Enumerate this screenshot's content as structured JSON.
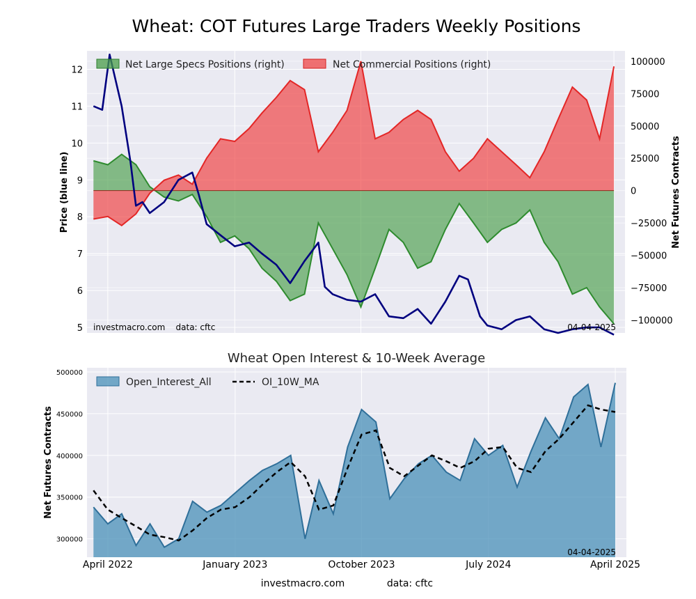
{
  "figure_title": "Wheat: COT Futures Large Traders Weekly Positions",
  "footer": {
    "site": "investmacro.com",
    "source": "data: cftc"
  },
  "colors": {
    "price": "#00007f",
    "specs": "#4a9e4a",
    "commercial": "#ef3b3b",
    "oi": "#4a90b8",
    "ma": "#000000",
    "panel": "#eaeaf2"
  },
  "chart_data": [
    {
      "id": "top",
      "type": "area",
      "title": "",
      "left_ylabel": "Price (blue line)",
      "right_ylabel": "Net Futures Contracts",
      "left_ylim": [
        4.85,
        12.5
      ],
      "right_ylim": [
        -110000,
        108000
      ],
      "left_ticks": [
        "5",
        "6",
        "7",
        "8",
        "9",
        "10",
        "11",
        "12"
      ],
      "right_ticks": [
        "-100000",
        "-75000",
        "-50000",
        "-25000",
        "0",
        "25000",
        "50000",
        "75000",
        "100000"
      ],
      "x_range": [
        "2022-02-15",
        "2025-04-25"
      ],
      "legend": [
        "Net Large Specs Positions (right)",
        "Net Commercial Positions (right)"
      ],
      "legend_position": "top",
      "annotation_left": "investmacro.com    data: cftc",
      "annotation_right": "04-04-2025",
      "grid": true,
      "series": [
        {
          "name": "Net Large Specs Positions (right)",
          "kind": "area",
          "x": [
            "2022-03-01",
            "2022-04-01",
            "2022-05-01",
            "2022-06-01",
            "2022-07-01",
            "2022-08-01",
            "2022-09-01",
            "2022-10-01",
            "2022-11-01",
            "2022-12-01",
            "2023-01-01",
            "2023-02-01",
            "2023-03-01",
            "2023-04-01",
            "2023-05-01",
            "2023-06-01",
            "2023-07-01",
            "2023-08-01",
            "2023-09-01",
            "2023-10-01",
            "2023-11-01",
            "2023-12-01",
            "2024-01-01",
            "2024-02-01",
            "2024-03-01",
            "2024-04-01",
            "2024-05-01",
            "2024-06-01",
            "2024-07-01",
            "2024-08-01",
            "2024-09-01",
            "2024-10-01",
            "2024-11-01",
            "2024-12-01",
            "2025-01-01",
            "2025-02-01",
            "2025-03-01",
            "2025-04-01"
          ],
          "y": [
            23000,
            20000,
            28000,
            20000,
            3000,
            -5000,
            -8000,
            -3000,
            -20000,
            -40000,
            -35000,
            -45000,
            -60000,
            -70000,
            -85000,
            -80000,
            -25000,
            -45000,
            -65000,
            -90000,
            -60000,
            -30000,
            -40000,
            -60000,
            -55000,
            -30000,
            -10000,
            -25000,
            -40000,
            -30000,
            -25000,
            -15000,
            -40000,
            -55000,
            -80000,
            -75000,
            -90000,
            -103000
          ]
        },
        {
          "name": "Net Commercial Positions (right)",
          "kind": "area",
          "x": [
            "2022-03-01",
            "2022-04-01",
            "2022-05-01",
            "2022-06-01",
            "2022-07-01",
            "2022-08-01",
            "2022-09-01",
            "2022-10-01",
            "2022-11-01",
            "2022-12-01",
            "2023-01-01",
            "2023-02-01",
            "2023-03-01",
            "2023-04-01",
            "2023-05-01",
            "2023-06-01",
            "2023-07-01",
            "2023-08-01",
            "2023-09-01",
            "2023-10-01",
            "2023-11-01",
            "2023-12-01",
            "2024-01-01",
            "2024-02-01",
            "2024-03-01",
            "2024-04-01",
            "2024-05-01",
            "2024-06-01",
            "2024-07-01",
            "2024-08-01",
            "2024-09-01",
            "2024-10-01",
            "2024-11-01",
            "2024-12-01",
            "2025-01-01",
            "2025-02-01",
            "2025-03-01",
            "2025-04-01"
          ],
          "y": [
            -22000,
            -20000,
            -27000,
            -18000,
            -2000,
            8000,
            12000,
            5000,
            25000,
            40000,
            38000,
            48000,
            60000,
            72000,
            85000,
            78000,
            30000,
            45000,
            62000,
            100000,
            40000,
            45000,
            55000,
            62000,
            55000,
            30000,
            15000,
            25000,
            40000,
            30000,
            20000,
            10000,
            30000,
            55000,
            80000,
            70000,
            40000,
            96000
          ]
        },
        {
          "name": "Price",
          "kind": "line",
          "x": [
            "2022-03-01",
            "2022-03-20",
            "2022-04-05",
            "2022-05-01",
            "2022-05-20",
            "2022-06-01",
            "2022-06-15",
            "2022-07-01",
            "2022-08-01",
            "2022-09-01",
            "2022-10-01",
            "2022-10-15",
            "2022-11-01",
            "2022-12-01",
            "2023-01-01",
            "2023-02-01",
            "2023-03-01",
            "2023-04-01",
            "2023-05-01",
            "2023-06-01",
            "2023-07-01",
            "2023-07-15",
            "2023-08-01",
            "2023-09-01",
            "2023-10-01",
            "2023-11-01",
            "2023-12-01",
            "2024-01-01",
            "2024-02-01",
            "2024-03-01",
            "2024-04-01",
            "2024-05-01",
            "2024-05-20",
            "2024-06-15",
            "2024-07-01",
            "2024-08-01",
            "2024-09-01",
            "2024-10-01",
            "2024-11-01",
            "2024-12-01",
            "2025-01-01",
            "2025-02-01",
            "2025-03-01",
            "2025-04-01"
          ],
          "y": [
            11.0,
            10.9,
            12.4,
            11.0,
            9.5,
            8.3,
            8.4,
            8.1,
            8.4,
            9.0,
            9.2,
            8.6,
            7.8,
            7.5,
            7.2,
            7.3,
            7.0,
            6.7,
            6.2,
            6.8,
            7.3,
            6.1,
            5.9,
            5.75,
            5.7,
            5.9,
            5.3,
            5.25,
            5.5,
            5.1,
            5.7,
            6.4,
            6.3,
            5.3,
            5.05,
            4.95,
            5.2,
            5.3,
            4.95,
            4.85,
            4.95,
            5.0,
            5.0,
            4.8
          ]
        }
      ]
    },
    {
      "id": "bottom",
      "type": "area",
      "title": "Wheat Open Interest & 10-Week Average",
      "ylabel": "Net Futures Contracts",
      "ylim": [
        278000,
        505000
      ],
      "y_ticks": [
        "300000",
        "350000",
        "400000",
        "450000",
        "500000"
      ],
      "x_ticks": [
        {
          "label": "April 2022",
          "date": "2022-04-01"
        },
        {
          "label": "January 2023",
          "date": "2023-01-01"
        },
        {
          "label": "October 2023",
          "date": "2023-10-01"
        },
        {
          "label": "July 2024",
          "date": "2024-07-01"
        },
        {
          "label": "April 2025",
          "date": "2025-04-01"
        }
      ],
      "x_range": [
        "2022-02-15",
        "2025-04-25"
      ],
      "legend": [
        "Open_Interest_All",
        "OI_10W_MA"
      ],
      "legend_position": "top-left",
      "annotation_right": "04-04-2025",
      "grid": true,
      "series": [
        {
          "name": "Open_Interest_All",
          "kind": "area",
          "x": [
            "2022-03-01",
            "2022-04-01",
            "2022-05-01",
            "2022-06-01",
            "2022-07-01",
            "2022-08-01",
            "2022-09-01",
            "2022-10-01",
            "2022-11-01",
            "2022-12-01",
            "2023-01-01",
            "2023-02-01",
            "2023-03-01",
            "2023-04-01",
            "2023-05-01",
            "2023-06-01",
            "2023-07-01",
            "2023-08-01",
            "2023-09-01",
            "2023-10-01",
            "2023-11-01",
            "2023-12-01",
            "2024-01-01",
            "2024-02-01",
            "2024-03-01",
            "2024-04-01",
            "2024-05-01",
            "2024-06-01",
            "2024-07-01",
            "2024-08-01",
            "2024-09-01",
            "2024-10-01",
            "2024-11-01",
            "2024-12-01",
            "2025-01-01",
            "2025-02-01",
            "2025-03-01",
            "2025-04-01"
          ],
          "y": [
            338000,
            318000,
            330000,
            292000,
            318000,
            290000,
            300000,
            345000,
            332000,
            340000,
            355000,
            370000,
            382000,
            390000,
            400000,
            300000,
            370000,
            330000,
            410000,
            455000,
            440000,
            348000,
            372000,
            390000,
            400000,
            380000,
            370000,
            420000,
            400000,
            412000,
            362000,
            405000,
            445000,
            420000,
            470000,
            485000,
            410000,
            487000
          ]
        },
        {
          "name": "OI_10W_MA",
          "kind": "line",
          "x": [
            "2022-03-01",
            "2022-04-01",
            "2022-05-01",
            "2022-06-01",
            "2022-07-01",
            "2022-08-01",
            "2022-09-01",
            "2022-10-01",
            "2022-11-01",
            "2022-12-01",
            "2023-01-01",
            "2023-02-01",
            "2023-03-01",
            "2023-04-01",
            "2023-05-01",
            "2023-06-01",
            "2023-07-01",
            "2023-08-01",
            "2023-09-01",
            "2023-10-01",
            "2023-11-01",
            "2023-12-01",
            "2024-01-01",
            "2024-02-01",
            "2024-03-01",
            "2024-04-01",
            "2024-05-01",
            "2024-06-01",
            "2024-07-01",
            "2024-08-01",
            "2024-09-01",
            "2024-10-01",
            "2024-11-01",
            "2024-12-01",
            "2025-01-01",
            "2025-02-01",
            "2025-03-01",
            "2025-04-01"
          ],
          "y": [
            358000,
            335000,
            325000,
            315000,
            305000,
            302000,
            298000,
            310000,
            325000,
            335000,
            338000,
            350000,
            365000,
            380000,
            392000,
            375000,
            335000,
            340000,
            385000,
            425000,
            430000,
            385000,
            375000,
            388000,
            400000,
            393000,
            385000,
            393000,
            408000,
            410000,
            385000,
            380000,
            405000,
            420000,
            440000,
            460000,
            455000,
            452000
          ]
        }
      ]
    }
  ]
}
